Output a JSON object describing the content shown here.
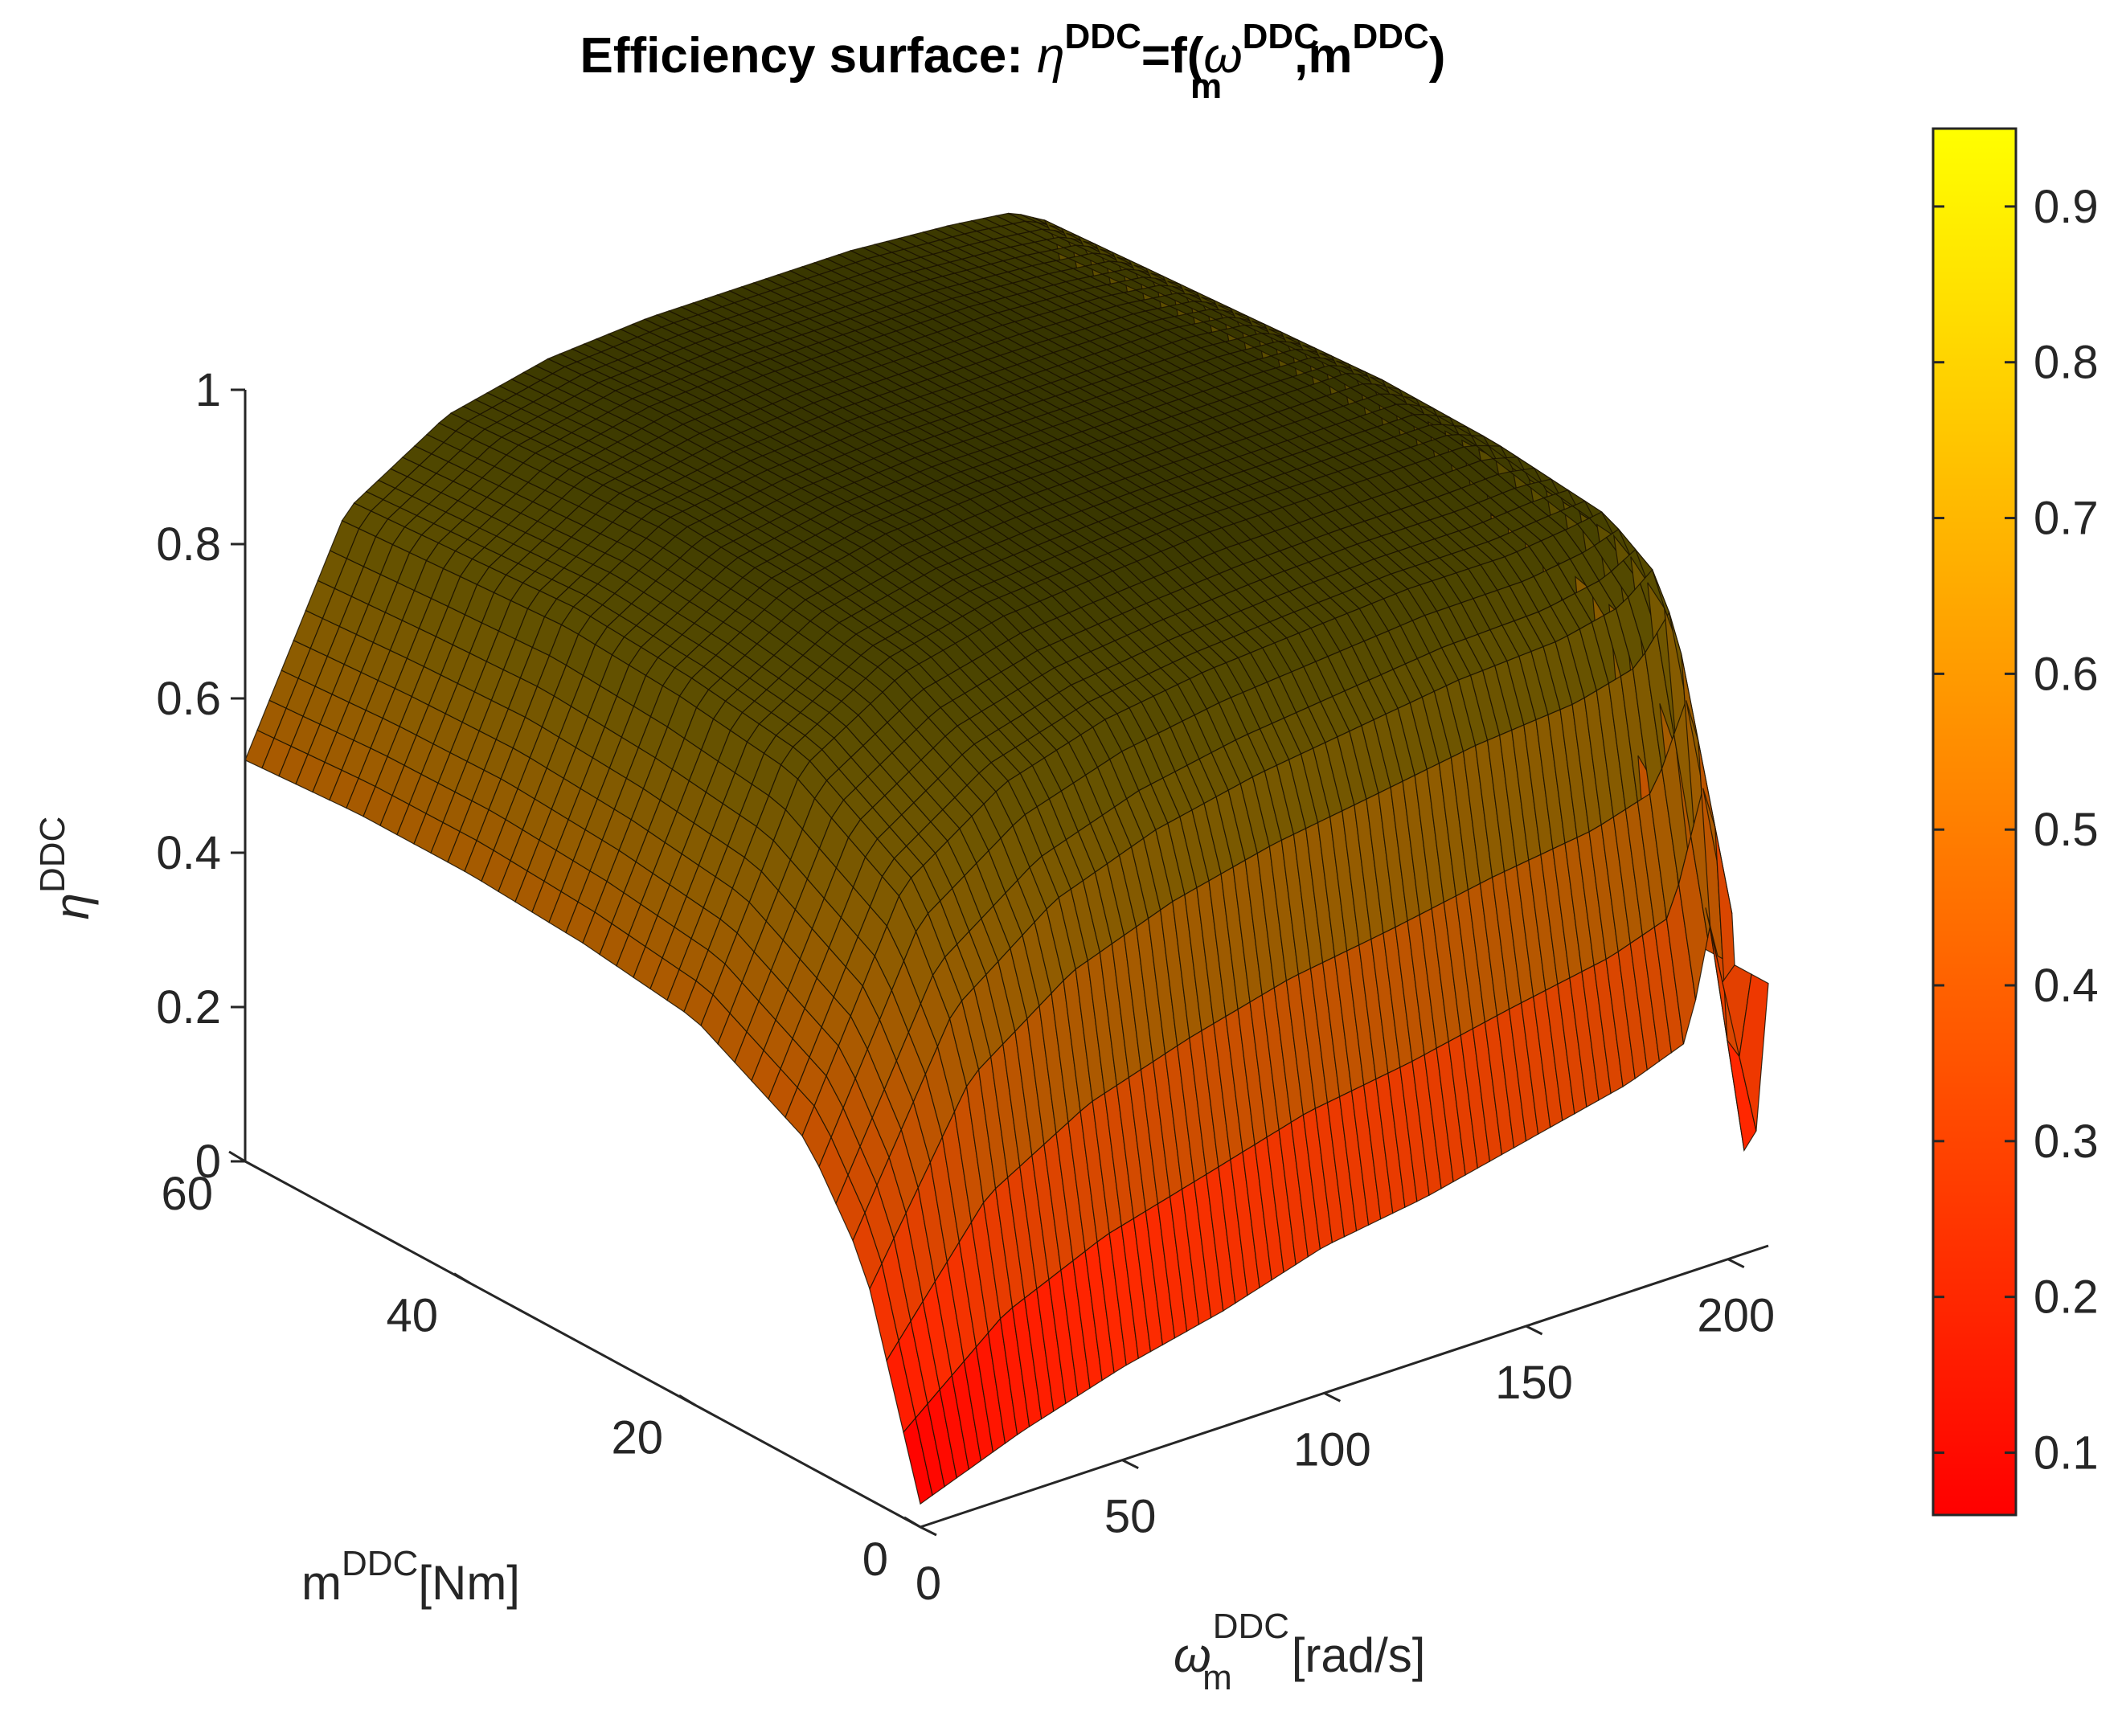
{
  "chart_data": {
    "type": "surface",
    "title": {
      "prefix": "Efficiency surface: ",
      "eta": "η",
      "eta_sup": "DDC",
      "eq": "=f(",
      "omega": "ω",
      "omega_sup": "DDC",
      "omega_sub": "m",
      "comma_m": ",m",
      "m_sup": "DDC",
      "close": ")"
    },
    "zlabel": {
      "sym": "η",
      "sup": "DDC"
    },
    "ylabel": {
      "sym": "m",
      "sup": "DDC",
      "unit": "[Nm]"
    },
    "xlabel": {
      "sym": "ω",
      "sub": "m",
      "sup": "DDC",
      "unit": "[rad/s]"
    },
    "xlim": [
      0,
      210
    ],
    "ylim": [
      0,
      60
    ],
    "zlim": [
      0,
      1
    ],
    "x_ticks": [
      {
        "v": 0,
        "label": "0"
      },
      {
        "v": 50,
        "label": "50"
      },
      {
        "v": 100,
        "label": "100"
      },
      {
        "v": 150,
        "label": "150"
      },
      {
        "v": 200,
        "label": "200"
      }
    ],
    "y_ticks": [
      {
        "v": 0,
        "label": "0"
      },
      {
        "v": 20,
        "label": "20"
      },
      {
        "v": 40,
        "label": "40"
      },
      {
        "v": 60,
        "label": "60"
      }
    ],
    "z_ticks": [
      {
        "v": 0,
        "label": "0"
      },
      {
        "v": 0.2,
        "label": "0.2"
      },
      {
        "v": 0.4,
        "label": "0.4"
      },
      {
        "v": 0.6,
        "label": "0.6"
      },
      {
        "v": 0.8,
        "label": "0.8"
      },
      {
        "v": 1,
        "label": "1"
      }
    ],
    "colorbar": {
      "range": [
        0.06,
        0.95
      ],
      "ticks": [
        {
          "v": 0.1,
          "label": "0.1"
        },
        {
          "v": 0.2,
          "label": "0.2"
        },
        {
          "v": 0.3,
          "label": "0.3"
        },
        {
          "v": 0.4,
          "label": "0.4"
        },
        {
          "v": 0.5,
          "label": "0.5"
        },
        {
          "v": 0.6,
          "label": "0.6"
        },
        {
          "v": 0.7,
          "label": "0.7"
        },
        {
          "v": 0.8,
          "label": "0.8"
        },
        {
          "v": 0.9,
          "label": "0.9"
        }
      ],
      "colormap": "autumn",
      "low_color": "#ff0000",
      "high_color": "#ffff00"
    },
    "surface": {
      "omega": [
        0,
        25,
        50,
        75,
        100,
        125,
        150,
        175,
        190,
        200,
        205,
        210
      ],
      "m": [
        0,
        5,
        10,
        20,
        30,
        40,
        50,
        60
      ],
      "eta": [
        [
          0.03,
          0.08,
          0.12,
          0.15,
          0.19,
          0.21,
          0.24,
          0.27,
          0.3,
          0.55,
          0.03,
          0.34
        ],
        [
          0.3,
          0.55,
          0.65,
          0.7,
          0.73,
          0.75,
          0.77,
          0.78,
          0.8,
          0.85,
          0.5,
          0.34
        ],
        [
          0.42,
          0.7,
          0.79,
          0.83,
          0.85,
          0.86,
          0.87,
          0.87,
          0.88,
          0.89,
          0.7,
          0.34
        ],
        [
          0.5,
          0.79,
          0.87,
          0.9,
          0.91,
          0.92,
          0.92,
          0.92,
          0.92,
          0.9,
          0.75,
          0.34
        ],
        [
          0.52,
          0.81,
          0.89,
          0.92,
          0.93,
          0.93,
          0.93,
          0.93,
          0.93,
          0.9,
          0.75,
          0.34
        ],
        [
          0.53,
          0.82,
          0.9,
          0.92,
          0.93,
          0.93,
          0.93,
          0.93,
          0.92,
          0.89,
          0.74,
          0.34
        ],
        [
          0.53,
          0.81,
          0.89,
          0.92,
          0.93,
          0.93,
          0.93,
          0.92,
          0.91,
          0.88,
          0.73,
          0.34
        ],
        [
          0.52,
          0.8,
          0.88,
          0.91,
          0.92,
          0.92,
          0.92,
          0.91,
          0.9,
          0.87,
          0.72,
          0.34
        ]
      ]
    }
  }
}
